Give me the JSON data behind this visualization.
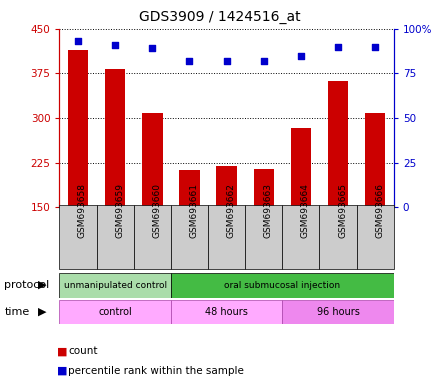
{
  "title": "GDS3909 / 1424516_at",
  "categories": [
    "GSM693658",
    "GSM693659",
    "GSM693660",
    "GSM693661",
    "GSM693662",
    "GSM693663",
    "GSM693664",
    "GSM693665",
    "GSM693666"
  ],
  "counts": [
    415,
    382,
    308,
    212,
    220,
    215,
    283,
    362,
    308
  ],
  "percentile_ranks": [
    93,
    91,
    89,
    82,
    82,
    82,
    85,
    90,
    90
  ],
  "ylim_left": [
    150,
    450
  ],
  "ylim_right": [
    0,
    100
  ],
  "yticks_left": [
    150,
    225,
    300,
    375,
    450
  ],
  "yticks_right": [
    0,
    25,
    50,
    75,
    100
  ],
  "bar_color": "#cc0000",
  "scatter_color": "#0000cc",
  "protocol_groups": [
    {
      "label": "unmanipulated control",
      "start": 0,
      "end": 3,
      "color": "#aaddaa"
    },
    {
      "label": "oral submucosal injection",
      "start": 3,
      "end": 9,
      "color": "#44bb44"
    }
  ],
  "time_groups": [
    {
      "label": "control",
      "start": 0,
      "end": 3,
      "color": "#ffaaff"
    },
    {
      "label": "48 hours",
      "start": 3,
      "end": 6,
      "color": "#ffaaff"
    },
    {
      "label": "96 hours",
      "start": 6,
      "end": 9,
      "color": "#ee88ee"
    }
  ],
  "left_axis_color": "#cc0000",
  "right_axis_color": "#0000cc",
  "xtick_box_color": "#cccccc"
}
